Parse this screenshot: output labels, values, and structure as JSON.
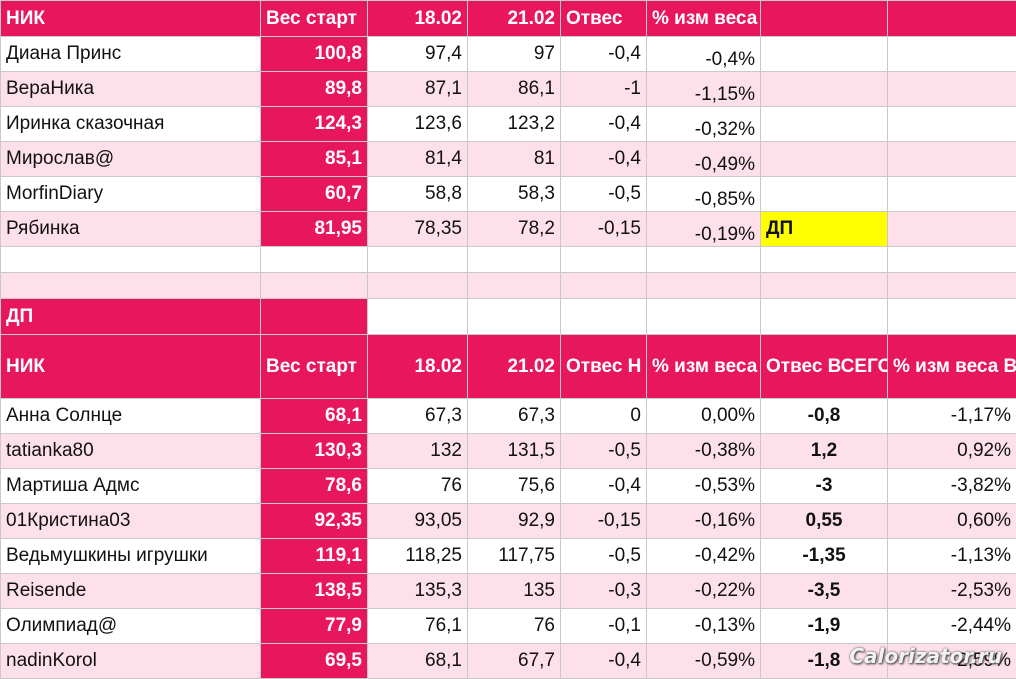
{
  "top_header": [
    "НИК",
    "Вес старт",
    "18.02",
    "21.02",
    "Отвес",
    "% изм веса",
    "",
    ""
  ],
  "top_rows": [
    {
      "nick": "Диана Принс",
      "start": "100,8",
      "d1": "97,4",
      "d2": "97",
      "loss": "-0,4",
      "pct": "-0,4%",
      "g": "",
      "h": ""
    },
    {
      "nick": "ВераНика",
      "start": "89,8",
      "d1": "87,1",
      "d2": "86,1",
      "loss": "-1",
      "pct": "-1,15%",
      "g": "",
      "h": ""
    },
    {
      "nick": "Иринка сказочная",
      "start": "124,3",
      "d1": "123,6",
      "d2": "123,2",
      "loss": "-0,4",
      "pct": "-0,32%",
      "g": "",
      "h": ""
    },
    {
      "nick": "Мирослав@",
      "start": "85,1",
      "d1": "81,4",
      "d2": "81",
      "loss": "-0,4",
      "pct": "-0,49%",
      "g": "",
      "h": ""
    },
    {
      "nick": "MorfinDiary",
      "start": "60,7",
      "d1": "58,8",
      "d2": "58,3",
      "loss": "-0,5",
      "pct": "-0,85%",
      "g": "",
      "h": ""
    },
    {
      "nick": "Рябинка",
      "start": "81,95",
      "d1": "78,35",
      "d2": "78,2",
      "loss": "-0,15",
      "pct": "-0,19%",
      "g": "ДП",
      "h": ""
    }
  ],
  "section_label": "ДП",
  "bottom_header": [
    "НИК",
    "Вес старт",
    "18.02",
    "21.02",
    "Отвес Н",
    "% изм веса Н",
    "Отвес ВСЕГО",
    "% изм веса ВСЕГО"
  ],
  "bottom_rows": [
    {
      "nick": "Анна Солнце",
      "start": "68,1",
      "d1": "67,3",
      "d2": "67,3",
      "loss": "0",
      "pct": "0,00%",
      "total": "-0,8",
      "total_pct": "-1,17%"
    },
    {
      "nick": "tatianka80",
      "start": "130,3",
      "d1": "132",
      "d2": "131,5",
      "loss": "-0,5",
      "pct": "-0,38%",
      "total": "1,2",
      "total_pct": "0,92%"
    },
    {
      "nick": "Мартиша Адмс",
      "start": "78,6",
      "d1": "76",
      "d2": "75,6",
      "loss": "-0,4",
      "pct": "-0,53%",
      "total": "-3",
      "total_pct": "-3,82%"
    },
    {
      "nick": "01Кристина03",
      "start": "92,35",
      "d1": "93,05",
      "d2": "92,9",
      "loss": "-0,15",
      "pct": "-0,16%",
      "total": "0,55",
      "total_pct": "0,60%"
    },
    {
      "nick": "Ведьмушкины игрушки",
      "start": "119,1",
      "d1": "118,25",
      "d2": "117,75",
      "loss": "-0,5",
      "pct": "-0,42%",
      "total": "-1,35",
      "total_pct": "-1,13%"
    },
    {
      "nick": "Reisende",
      "start": "138,5",
      "d1": "135,3",
      "d2": "135",
      "loss": "-0,3",
      "pct": "-0,22%",
      "total": "-3,5",
      "total_pct": "-2,53%"
    },
    {
      "nick": "Олимпиад@",
      "start": "77,9",
      "d1": "76,1",
      "d2": "76",
      "loss": "-0,1",
      "pct": "-0,13%",
      "total": "-1,9",
      "total_pct": "-2,44%"
    },
    {
      "nick": "nadinKorol",
      "start": "69,5",
      "d1": "68,1",
      "d2": "67,7",
      "loss": "-0,4",
      "pct": "-0,59%",
      "total": "-1,8",
      "total_pct": "-2,59%"
    }
  ],
  "watermark": "Calorizator.ru",
  "colors": {
    "header": "#e8175d",
    "alt_row": "#fde0ea",
    "highlight": "#ffff00"
  }
}
